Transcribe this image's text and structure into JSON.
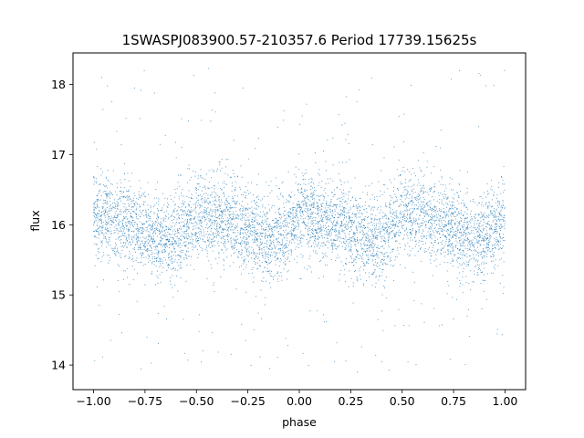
{
  "chart_data": {
    "type": "scatter",
    "title": "1SWASPJ083900.57-210357.6 Period 17739.15625s",
    "xlabel": "phase",
    "ylabel": "flux",
    "xlim": [
      -1.1,
      1.1
    ],
    "ylim": [
      13.65,
      18.45
    ],
    "xticks": [
      -1.0,
      -0.75,
      -0.5,
      -0.25,
      0.0,
      0.25,
      0.5,
      0.75,
      1.0
    ],
    "xtick_labels": [
      "−1.00",
      "−0.75",
      "−0.50",
      "−0.25",
      "0.00",
      "0.25",
      "0.50",
      "0.75",
      "1.00"
    ],
    "yticks": [
      14,
      15,
      16,
      17,
      18
    ],
    "ytick_labels": [
      "14",
      "15",
      "16",
      "17",
      "18"
    ],
    "grid": false,
    "series": [
      {
        "color": "#1f77b4",
        "description_model": "phase-folded light curve, period 0.5 in phase, repeated twice over [-1, 1]",
        "profile": {
          "phase": [
            0.0,
            0.05,
            0.1,
            0.15,
            0.2,
            0.25,
            0.3,
            0.35,
            0.4,
            0.45,
            0.5
          ],
          "median_flux": [
            16.15,
            16.15,
            16.1,
            16.05,
            16.0,
            15.9,
            15.82,
            15.78,
            15.82,
            15.95,
            16.15
          ]
        },
        "scatter_sigma": 0.3,
        "range": {
          "x": [
            -1.0,
            1.0
          ],
          "y": [
            13.85,
            18.25
          ]
        }
      }
    ]
  }
}
